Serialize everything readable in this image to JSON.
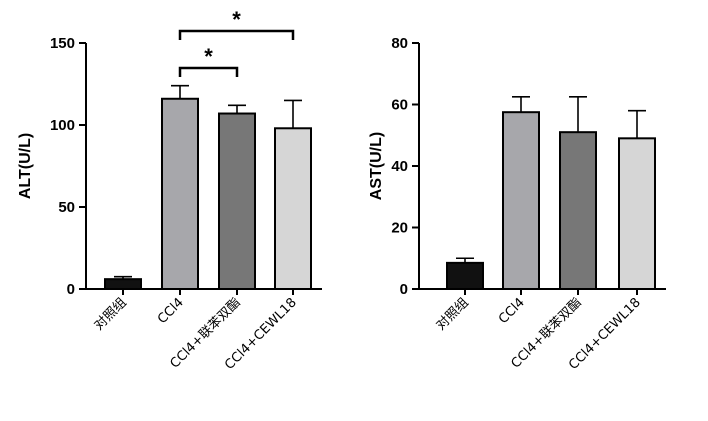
{
  "chart_data": [
    {
      "type": "bar",
      "id": "alt",
      "ylabel": "ALT(U/L)",
      "ylim": [
        0,
        150
      ],
      "yticks": [
        "0",
        "50",
        "100",
        "150"
      ],
      "categories": [
        "对照组",
        "CCl4",
        "CCl4+联苯双酯",
        "CCl4+CEWL18"
      ],
      "values": [
        6,
        116,
        107,
        98
      ],
      "errors": [
        1.5,
        8,
        5,
        17
      ],
      "colors": [
        "#111111",
        "#a7a7ab",
        "#777777",
        "#d6d6d6"
      ],
      "significance": [
        {
          "from": 1,
          "to": 2,
          "label": "*"
        },
        {
          "from": 1,
          "to": 3,
          "label": "*"
        }
      ]
    },
    {
      "type": "bar",
      "id": "ast",
      "ylabel": "AST(U/L)",
      "ylim": [
        0,
        80
      ],
      "yticks": [
        "0",
        "20",
        "40",
        "60",
        "80"
      ],
      "categories": [
        "对照组",
        "CCl4",
        "CCl4+联苯双酯",
        "CCl4+CEWL18"
      ],
      "values": [
        8.5,
        57.5,
        51,
        49
      ],
      "errors": [
        1.5,
        5,
        11.5,
        9
      ],
      "colors": [
        "#111111",
        "#a7a7ab",
        "#777777",
        "#d6d6d6"
      ],
      "significance": []
    }
  ]
}
